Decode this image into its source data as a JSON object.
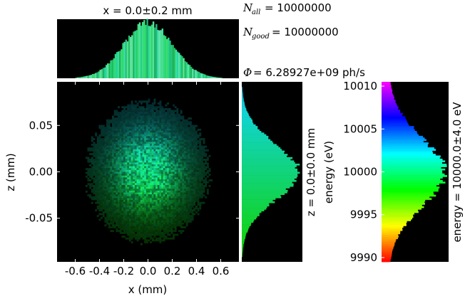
{
  "stats": {
    "n_all_symbol": "N",
    "n_all_sub": "all",
    "n_all_value": "= 10000000",
    "n_good_symbol": "N",
    "n_good_sub": "good",
    "n_good_value": "= 10000000",
    "flux_symbol": "Φ",
    "flux_value": "= 6.28927e+09 ph/s"
  },
  "chart_data": [
    {
      "type": "heatmap",
      "title": "x = 0.0±0.2 mm",
      "xlabel": "x (mm)",
      "ylabel": "z (mm)",
      "xlim": [
        -0.75,
        0.75
      ],
      "ylim": [
        -0.097,
        0.097
      ],
      "xticks": [
        "-0.6",
        "-0.4",
        "-0.2",
        "0.0",
        "0.2",
        "0.4",
        "0.6"
      ],
      "xtick_values": [
        -0.6,
        -0.4,
        -0.2,
        0.0,
        0.2,
        0.4,
        0.6
      ],
      "yticks": [
        "0.05",
        "0.00",
        "-0.05"
      ],
      "ytick_values": [
        0.05,
        0.0,
        -0.05
      ],
      "x_center": 0.0,
      "x_sigma": 0.2,
      "z_center": 0.0,
      "z_sigma": 0.03,
      "background": "#000000"
    },
    {
      "type": "bar",
      "role": "x-histogram",
      "xlim": [
        -0.75,
        0.75
      ],
      "center": 0.0,
      "sigma": 0.2
    },
    {
      "type": "bar",
      "role": "z-histogram",
      "ylabel": "z = 0.0±0.0 mm",
      "ylim": [
        -0.097,
        0.097
      ],
      "center": 0.0,
      "sigma": 0.03
    },
    {
      "type": "bar",
      "role": "energy-histogram",
      "ylabel": "energy (eV)",
      "right_label": "energy = 10000.0±4.0 eV",
      "ylim": [
        9989.5,
        10010.5
      ],
      "yticks": [
        "10010",
        "10005",
        "10000",
        "9995",
        "9990"
      ],
      "ytick_values": [
        10010,
        10005,
        10000,
        9995,
        9990
      ],
      "center": 10000.0,
      "sigma": 4.0
    }
  ]
}
